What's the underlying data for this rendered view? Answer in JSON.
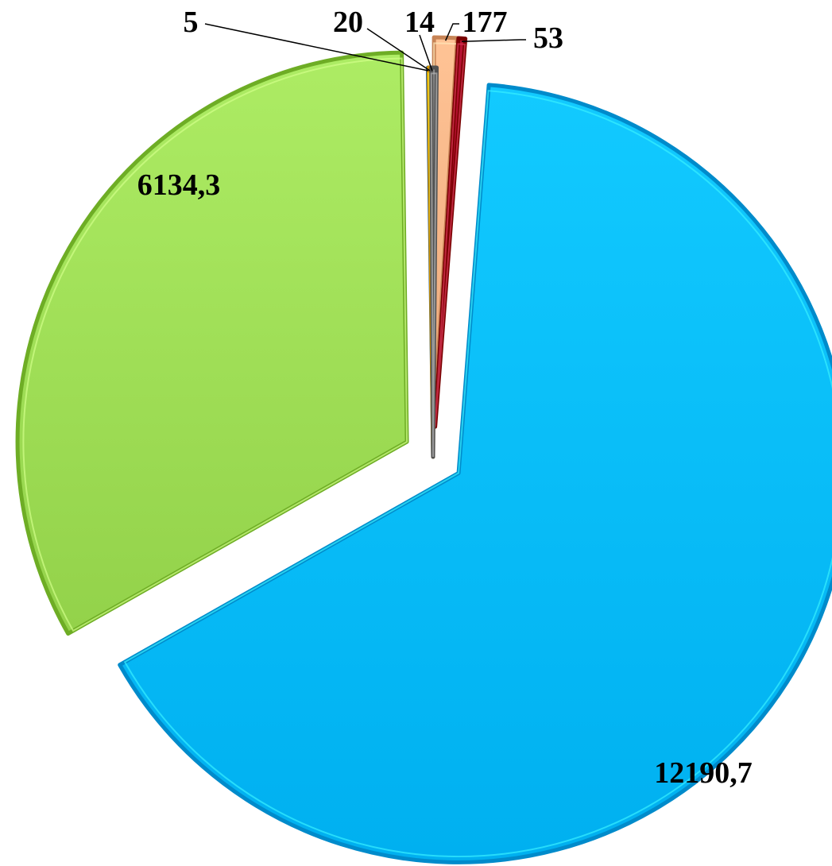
{
  "chart_data": {
    "type": "pie",
    "title": "",
    "legend": "none",
    "start_angle_deg": 0,
    "direction": "clockwise",
    "slices": [
      {
        "label": "177",
        "value": 177,
        "color": "#F4B183",
        "exploded": true
      },
      {
        "label": "53",
        "value": 53,
        "color": "#A50021",
        "exploded": true
      },
      {
        "label": "12190,7",
        "value": 12190.7,
        "color": "#00B8F8",
        "exploded": true
      },
      {
        "label": "6134,3",
        "value": 6134.3,
        "color": "#9BDA52",
        "exploded": true
      },
      {
        "label": "5",
        "value": 5,
        "color": "#2E75B6",
        "exploded": false
      },
      {
        "label": "20",
        "value": 20,
        "color": "#FFC000",
        "exploded": false
      },
      {
        "label": "14",
        "value": 14,
        "color": "#7F7F7F",
        "exploded": false
      }
    ]
  }
}
